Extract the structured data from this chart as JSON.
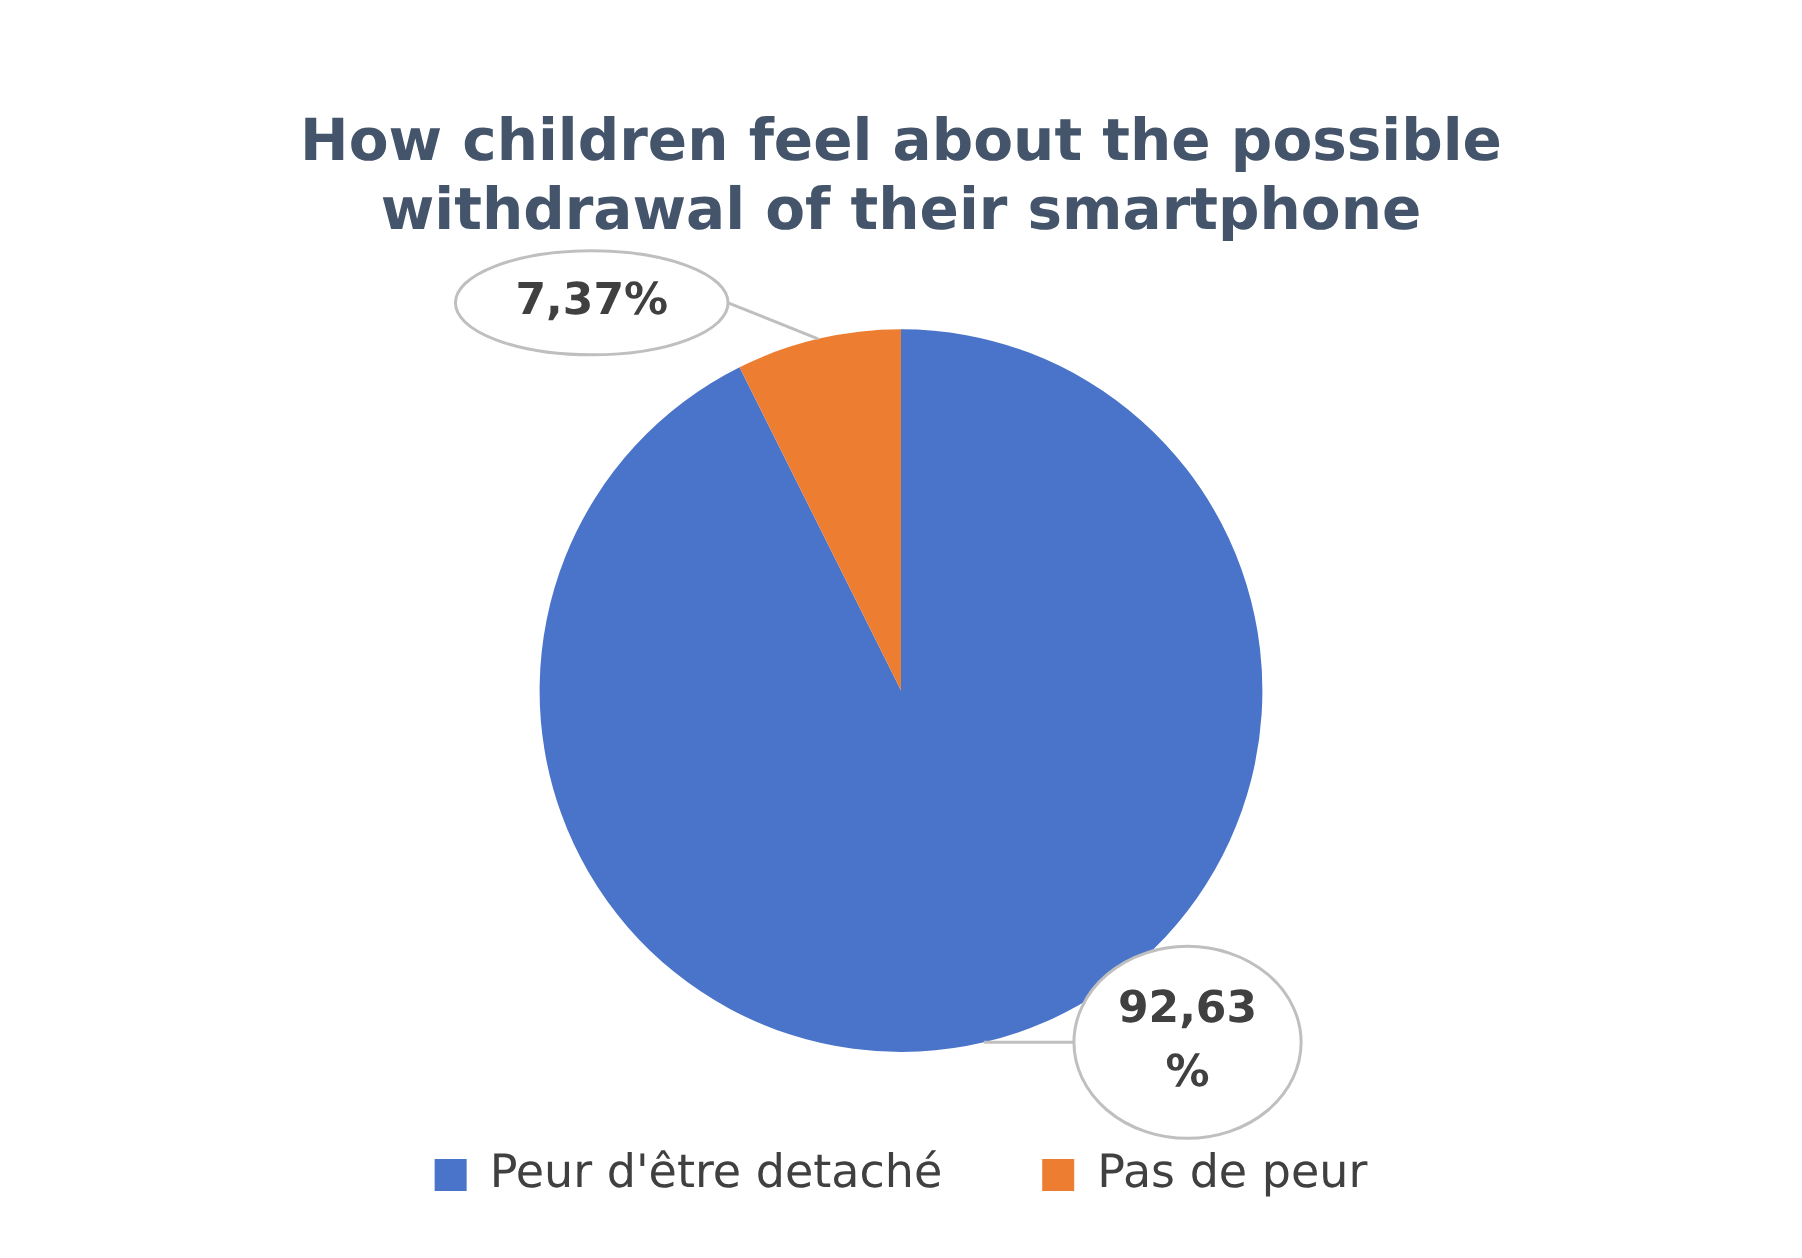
{
  "chart_data": {
    "type": "pie",
    "title": "How children feel about the possible withdrawal of their smartphone",
    "categories": [
      "Peur d'être detaché",
      "Pas de peur"
    ],
    "values": [
      92.63,
      7.37
    ],
    "colors": [
      "#4a74c9",
      "#ed7d31"
    ],
    "value_labels": [
      "92,63 %",
      "7,37%"
    ],
    "legend": "bottom"
  }
}
